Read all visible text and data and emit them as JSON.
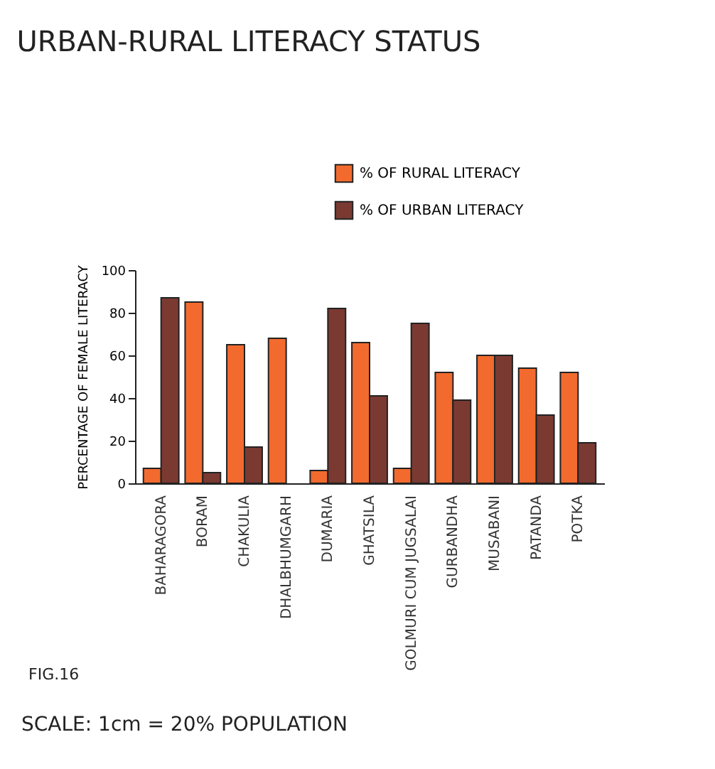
{
  "chart_data": {
    "type": "bar",
    "title": "URBAN-RURAL LITERACY STATUS",
    "ylabel": "PERCENTAGE OF FEMALE LITERACY",
    "categories": [
      "BAHARAGORA",
      "BORAM",
      "CHAKULIA",
      "DHALBHUMGARH",
      "DUMARIA",
      "GHATSILA",
      "GOLMURI CUM JUGSALAI",
      "GURBANDHA",
      "MUSABANI",
      "PATANDA",
      "POTKA"
    ],
    "series": [
      {
        "name": "% OF RURAL LITERACY",
        "color": "#f26a2e",
        "values": [
          7,
          85,
          65,
          68,
          6,
          66,
          7,
          52,
          60,
          54,
          52
        ]
      },
      {
        "name": "% OF URBAN LITERACY",
        "color": "#7a3a32",
        "values": [
          87,
          5,
          17,
          null,
          82,
          41,
          75,
          39,
          60,
          32,
          19
        ]
      }
    ],
    "ylim": [
      0,
      100
    ],
    "yticks": [
      0,
      20,
      40,
      60,
      80,
      100
    ],
    "grid": false,
    "legend": "top right",
    "annotations": [
      "FIG.16",
      "SCALE: 1cm = 20% POPULATION"
    ]
  }
}
